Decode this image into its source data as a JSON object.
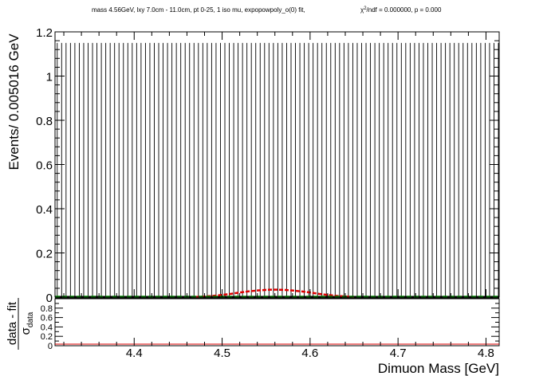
{
  "chart_data": [
    {
      "type": "scatter",
      "title": "mass 4.56GeV, lxy 7.0cm - 11.0cm, pt 0-25, 1 iso mu, expopowpoly_o(0) fit,",
      "stats_chi_prefix": "χ",
      "stats_chi_sup": "2",
      "stats_text": "/ndf = 0.000000, p = 0.000",
      "ylabel": "Events/ 0.005016 GeV",
      "xlim": [
        4.31,
        4.815
      ],
      "ylim": [
        0,
        1.2
      ],
      "y_ticks": [
        0,
        0.2,
        0.4,
        0.6,
        0.8,
        1,
        1.2
      ],
      "y_tick_labels": [
        "0",
        "0.2",
        "0.4",
        "0.6",
        "0.8",
        "1",
        "1.2"
      ],
      "bin_width": 0.005016,
      "error_bar_top": 1.15,
      "data_value": 0,
      "series": [
        {
          "kind": "signal-fit",
          "color": "#dd0000",
          "x": [
            4.47,
            4.48,
            4.49,
            4.5,
            4.51,
            4.52,
            4.53,
            4.54,
            4.55,
            4.56,
            4.57,
            4.58,
            4.59,
            4.6,
            4.61,
            4.62,
            4.63,
            4.64,
            4.65
          ],
          "y": [
            0.001,
            0.003,
            0.006,
            0.01,
            0.015,
            0.021,
            0.026,
            0.03,
            0.033,
            0.034,
            0.033,
            0.03,
            0.026,
            0.021,
            0.015,
            0.01,
            0.006,
            0.003,
            0.001
          ]
        },
        {
          "kind": "background-fit",
          "color": "#008800",
          "x": [
            4.31,
            4.815
          ],
          "y": [
            0.002,
            0.002
          ]
        }
      ]
    },
    {
      "type": "scatter",
      "ylabel_numerator": "data - fit",
      "ylabel_denominator": "σ",
      "ylabel_denominator_sub": "data",
      "xlabel": "Dimuon Mass [GeV]",
      "xlim": [
        4.31,
        4.815
      ],
      "ylim": [
        0,
        1.0
      ],
      "y_ticks": [
        0,
        0.2,
        0.4,
        0.6,
        0.8
      ],
      "y_tick_labels": [
        "0",
        "0.2",
        "0.4",
        "0.6",
        "0.8"
      ],
      "x_ticks": [
        4.4,
        4.5,
        4.6,
        4.7,
        4.8
      ],
      "x_tick_labels": [
        "4.4",
        "4.5",
        "4.6",
        "4.7",
        "4.8"
      ],
      "residual_value": 0,
      "residual_color": "#dd0000"
    }
  ]
}
